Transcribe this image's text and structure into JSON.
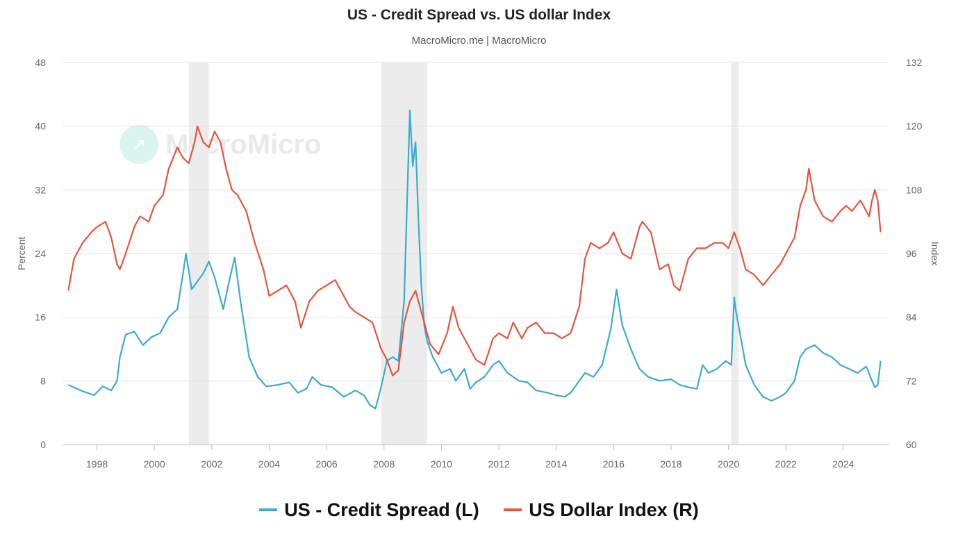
{
  "header": {
    "title": "US - Credit Spread vs. US dollar Index",
    "subtitle": "MacroMicro.me | MacroMicro"
  },
  "watermark": {
    "text": "MacroMicro",
    "icon": "chart-trend-icon"
  },
  "legend": [
    {
      "label": "US - Credit Spread (L)",
      "color": "#3aabd2"
    },
    {
      "label": "US Dollar Index (R)",
      "color": "#e8533a"
    }
  ],
  "chart_data": {
    "type": "line",
    "title": "US - Credit Spread vs. US dollar Index",
    "subtitle": "MacroMicro.me | MacroMicro",
    "x_range": [
      1996.8,
      2025.6
    ],
    "x_ticks": [
      "1998",
      "2000",
      "2002",
      "2004",
      "2006",
      "2008",
      "2010",
      "2012",
      "2014",
      "2016",
      "2018",
      "2020",
      "2022",
      "2024"
    ],
    "y_left": {
      "label": "Percent",
      "range": [
        0,
        48
      ],
      "ticks": [
        "0",
        "8",
        "16",
        "24",
        "32",
        "40",
        "48"
      ]
    },
    "y_right": {
      "label": "Index",
      "range": [
        60,
        132
      ],
      "ticks": [
        "60",
        "72",
        "84",
        "96",
        "108",
        "120",
        "132"
      ]
    },
    "grid": "horizontal",
    "legend_position": "bottom-center",
    "recession_shading": [
      [
        2001.2,
        2001.9
      ],
      [
        2007.9,
        2009.5
      ],
      [
        2020.1,
        2020.35
      ]
    ],
    "series": [
      {
        "name": "US - Credit Spread (L)",
        "axis": "left",
        "color": "#3aabd2",
        "x": [
          1997.0,
          1997.5,
          1997.9,
          1998.2,
          1998.5,
          1998.7,
          1998.8,
          1999.0,
          1999.3,
          1999.6,
          1999.9,
          2000.2,
          2000.5,
          2000.8,
          2001.0,
          2001.1,
          2001.3,
          2001.5,
          2001.7,
          2001.9,
          2002.1,
          2002.4,
          2002.6,
          2002.8,
          2003.0,
          2003.3,
          2003.6,
          2003.9,
          2004.3,
          2004.7,
          2005.0,
          2005.3,
          2005.5,
          2005.8,
          2006.2,
          2006.6,
          2007.0,
          2007.3,
          2007.5,
          2007.7,
          2007.9,
          2008.1,
          2008.3,
          2008.5,
          2008.7,
          2008.8,
          2008.9,
          2009.0,
          2009.1,
          2009.2,
          2009.3,
          2009.4,
          2009.5,
          2009.7,
          2010.0,
          2010.3,
          2010.5,
          2010.8,
          2011.0,
          2011.2,
          2011.5,
          2011.8,
          2012.0,
          2012.3,
          2012.7,
          2013.0,
          2013.3,
          2013.7,
          2014.0,
          2014.3,
          2014.5,
          2014.8,
          2015.0,
          2015.3,
          2015.6,
          2015.9,
          2016.1,
          2016.3,
          2016.6,
          2016.9,
          2017.2,
          2017.6,
          2018.0,
          2018.3,
          2018.6,
          2018.9,
          2019.1,
          2019.3,
          2019.6,
          2019.9,
          2020.1,
          2020.2,
          2020.25,
          2020.4,
          2020.6,
          2020.9,
          2021.2,
          2021.5,
          2021.8,
          2022.0,
          2022.3,
          2022.5,
          2022.7,
          2023.0,
          2023.3,
          2023.6,
          2023.9,
          2024.2,
          2024.5,
          2024.8,
          2025.0,
          2025.1,
          2025.2,
          2025.3
        ],
        "y": [
          7.5,
          6.7,
          6.2,
          7.3,
          6.8,
          8.0,
          11.0,
          13.8,
          14.2,
          12.5,
          13.5,
          14.0,
          16.0,
          17.0,
          21.5,
          24.0,
          19.5,
          20.5,
          21.5,
          23.0,
          21.0,
          17.0,
          20.5,
          23.5,
          18.0,
          11.0,
          8.5,
          7.3,
          7.5,
          7.8,
          6.5,
          7.0,
          8.5,
          7.5,
          7.2,
          6.0,
          6.8,
          6.2,
          5.0,
          4.5,
          7.2,
          10.5,
          11.0,
          10.5,
          18.0,
          30.0,
          42.0,
          35.0,
          38.0,
          28.0,
          20.0,
          15.0,
          13.0,
          11.0,
          9.0,
          9.5,
          8.0,
          9.5,
          7.0,
          7.8,
          8.5,
          10.0,
          10.5,
          9.0,
          8.0,
          7.8,
          6.8,
          6.5,
          6.2,
          6.0,
          6.5,
          8.0,
          9.0,
          8.5,
          10.0,
          14.5,
          19.5,
          15.0,
          12.0,
          9.5,
          8.5,
          8.0,
          8.2,
          7.5,
          7.2,
          7.0,
          10.0,
          9.0,
          9.5,
          10.5,
          10.0,
          18.5,
          17.0,
          14.0,
          10.0,
          7.5,
          6.0,
          5.5,
          6.0,
          6.5,
          8.0,
          11.0,
          12.0,
          12.5,
          11.5,
          11.0,
          10.0,
          9.5,
          9.0,
          9.8,
          8.0,
          7.2,
          7.5,
          10.5
        ]
      },
      {
        "name": "US Dollar Index (R)",
        "axis": "right",
        "color": "#e8533a",
        "x": [
          1997.0,
          1997.2,
          1997.5,
          1997.8,
          1998.0,
          1998.3,
          1998.5,
          1998.7,
          1998.8,
          1999.0,
          1999.3,
          1999.5,
          1999.8,
          2000.0,
          2000.3,
          2000.5,
          2000.8,
          2001.0,
          2001.2,
          2001.4,
          2001.5,
          2001.7,
          2001.9,
          2002.1,
          2002.3,
          2002.5,
          2002.7,
          2002.9,
          2003.2,
          2003.5,
          2003.8,
          2004.0,
          2004.3,
          2004.6,
          2004.9,
          2005.1,
          2005.4,
          2005.7,
          2006.0,
          2006.3,
          2006.5,
          2006.8,
          2007.0,
          2007.3,
          2007.6,
          2007.9,
          2008.1,
          2008.3,
          2008.5,
          2008.7,
          2008.9,
          2009.1,
          2009.3,
          2009.6,
          2009.9,
          2010.2,
          2010.4,
          2010.6,
          2010.9,
          2011.2,
          2011.5,
          2011.8,
          2012.0,
          2012.3,
          2012.5,
          2012.8,
          2013.0,
          2013.3,
          2013.6,
          2013.9,
          2014.2,
          2014.5,
          2014.8,
          2015.0,
          2015.2,
          2015.5,
          2015.8,
          2016.0,
          2016.3,
          2016.6,
          2016.9,
          2017.0,
          2017.3,
          2017.6,
          2017.9,
          2018.1,
          2018.3,
          2018.6,
          2018.9,
          2019.2,
          2019.5,
          2019.8,
          2020.0,
          2020.2,
          2020.4,
          2020.6,
          2020.9,
          2021.2,
          2021.5,
          2021.8,
          2022.0,
          2022.3,
          2022.5,
          2022.7,
          2022.8,
          2023.0,
          2023.3,
          2023.6,
          2023.9,
          2024.1,
          2024.3,
          2024.6,
          2024.9,
          2025.0,
          2025.1,
          2025.2,
          2025.3
        ],
        "y": [
          89.0,
          95.0,
          98.0,
          100.0,
          101.0,
          102.0,
          99.0,
          94.0,
          93.0,
          96.0,
          101.0,
          103.0,
          102.0,
          105.0,
          107.0,
          112.0,
          116.0,
          114.0,
          113.0,
          117.0,
          120.0,
          117.0,
          116.0,
          119.0,
          117.0,
          112.0,
          108.0,
          107.0,
          104.0,
          98.0,
          93.0,
          88.0,
          89.0,
          90.0,
          87.0,
          82.0,
          87.0,
          89.0,
          90.0,
          91.0,
          89.0,
          86.0,
          85.0,
          84.0,
          83.0,
          78.0,
          76.0,
          73.0,
          74.0,
          83.0,
          87.0,
          89.0,
          85.0,
          79.0,
          77.0,
          81.0,
          86.0,
          82.0,
          79.0,
          76.0,
          75.0,
          80.0,
          81.0,
          80.0,
          83.0,
          80.0,
          82.0,
          83.0,
          81.0,
          81.0,
          80.0,
          81.0,
          86.0,
          95.0,
          98.0,
          97.0,
          98.0,
          100.0,
          96.0,
          95.0,
          101.0,
          102.0,
          100.0,
          93.0,
          94.0,
          90.0,
          89.0,
          95.0,
          97.0,
          97.0,
          98.0,
          98.0,
          97.0,
          100.0,
          97.0,
          93.0,
          92.0,
          90.0,
          92.0,
          94.0,
          96.0,
          99.0,
          105.0,
          108.0,
          112.0,
          106.0,
          103.0,
          102.0,
          104.0,
          105.0,
          104.0,
          106.0,
          103.0,
          106.0,
          108.0,
          106.0,
          100.0
        ]
      }
    ]
  }
}
